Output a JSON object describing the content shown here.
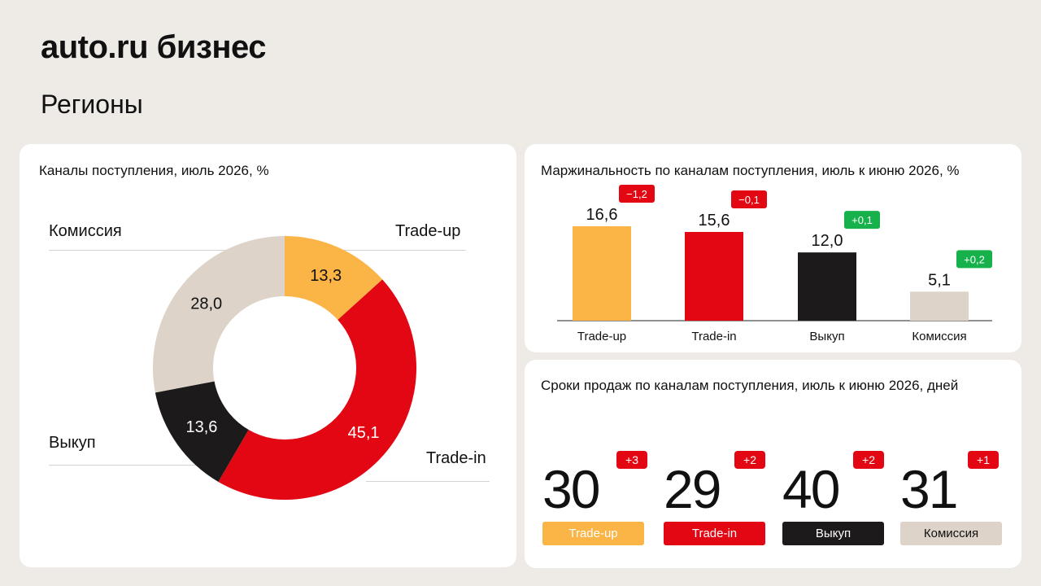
{
  "brand": "auto.ru бизнес",
  "page_title": "Регионы",
  "colors": {
    "trade_up": "#fbb446",
    "trade_in": "#e30613",
    "vykup": "#1c1a1a",
    "komissiya": "#ddd3c8",
    "badge_negative": "#e30613",
    "badge_positive": "#16b14a",
    "background": "#eeeae5"
  },
  "chart_data": [
    {
      "type": "pie",
      "title": "Каналы поступления, июль 2026, %",
      "categories": [
        "Trade-up",
        "Trade-in",
        "Выкуп",
        "Комиссия"
      ],
      "values": [
        13.3,
        45.1,
        13.6,
        28.0
      ],
      "value_labels": [
        "13,3",
        "45,1",
        "13,6",
        "28,0"
      ],
      "legend_labels": [
        "Trade-up",
        "Trade-in",
        "Выкуп",
        "Комиссия"
      ],
      "donut": true
    },
    {
      "type": "bar",
      "title": "Маржинальность по каналам поступления, июль к июню 2026, %",
      "categories": [
        "Trade-up",
        "Trade-in",
        "Выкуп",
        "Комиссия"
      ],
      "values": [
        16.6,
        15.6,
        12.0,
        5.1
      ],
      "value_labels": [
        "16,6",
        "15,6",
        "12,0",
        "5,1"
      ],
      "changes": [
        "−1,2",
        "−0,1",
        "+0,1",
        "+0,2"
      ],
      "change_signs": [
        "negative",
        "negative",
        "positive",
        "positive"
      ],
      "ylim": [
        0,
        20
      ],
      "grid": false
    },
    {
      "type": "table",
      "title": "Сроки продаж по каналам поступления, июль к июню 2026, дней",
      "categories": [
        "Trade-up",
        "Trade-in",
        "Выкуп",
        "Комиссия"
      ],
      "values": [
        30,
        29,
        40,
        31
      ],
      "changes": [
        "+3",
        "+2",
        "+2",
        "+1"
      ]
    }
  ]
}
